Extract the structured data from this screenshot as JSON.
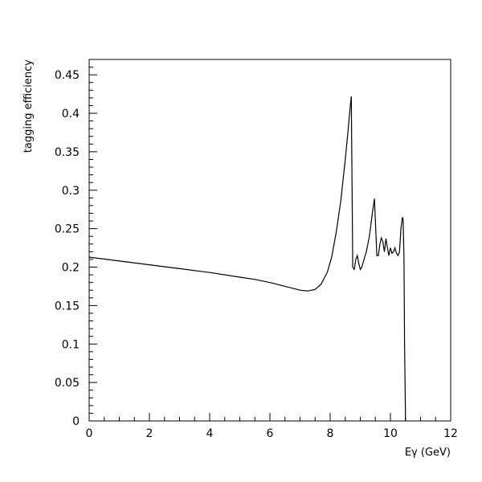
{
  "chart_data": {
    "type": "line",
    "xlabel": "Eγ (GeV)",
    "ylabel": "tagging efficiency",
    "xlim": [
      0,
      12
    ],
    "ylim": [
      0,
      0.47
    ],
    "xticks": [
      0,
      2,
      4,
      6,
      8,
      10,
      12
    ],
    "xtick_labels": [
      "0",
      "2",
      "4",
      "6",
      "8",
      "10",
      "12"
    ],
    "yticks": [
      0,
      0.05,
      0.1,
      0.15,
      0.2,
      0.25,
      0.3,
      0.35,
      0.4,
      0.45
    ],
    "ytick_labels": [
      "0",
      "0.05",
      "0.1",
      "0.15",
      "0.2",
      "0.25",
      "0.3",
      "0.35",
      "0.4",
      "0.45"
    ],
    "grid": false,
    "legend": "none",
    "series": [
      {
        "x": [
          0,
          1,
          2,
          3,
          4,
          5,
          5.5,
          6,
          6.5,
          7,
          7.25,
          7.5,
          7.7,
          7.9,
          8.05,
          8.2,
          8.35,
          8.5,
          8.6,
          8.67,
          8.7,
          8.75,
          8.8,
          8.85,
          8.9,
          8.95,
          9.0,
          9.05,
          9.1,
          9.2,
          9.3,
          9.4,
          9.47,
          9.5,
          9.55,
          9.6,
          9.65,
          9.7,
          9.75,
          9.8,
          9.85,
          9.9,
          9.95,
          10.0,
          10.05,
          10.1,
          10.15,
          10.2,
          10.25,
          10.3,
          10.35,
          10.4,
          10.42,
          10.45,
          10.47,
          10.5
        ],
        "y": [
          0.213,
          0.208,
          0.203,
          0.198,
          0.193,
          0.187,
          0.184,
          0.18,
          0.175,
          0.17,
          0.169,
          0.171,
          0.178,
          0.193,
          0.213,
          0.245,
          0.285,
          0.34,
          0.38,
          0.41,
          0.422,
          0.2,
          0.197,
          0.21,
          0.215,
          0.205,
          0.197,
          0.2,
          0.207,
          0.22,
          0.24,
          0.27,
          0.289,
          0.26,
          0.215,
          0.215,
          0.23,
          0.238,
          0.233,
          0.22,
          0.237,
          0.225,
          0.215,
          0.225,
          0.218,
          0.22,
          0.225,
          0.218,
          0.215,
          0.22,
          0.25,
          0.265,
          0.262,
          0.21,
          0.1,
          0.0
        ]
      }
    ]
  }
}
